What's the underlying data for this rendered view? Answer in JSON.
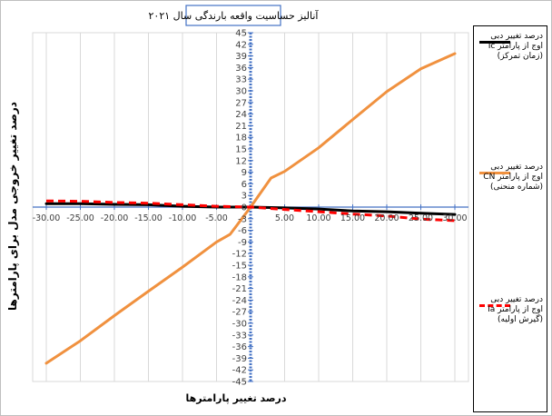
{
  "chart_data": {
    "type": "line",
    "title": "آنالیز حساسیت واقعه بارندگی سال ۲۰۲۱",
    "xlabel": "درصد تغییر پارامترها",
    "ylabel": "درصد تغییر خروجی مدل برای پارامترها",
    "x": [
      -30,
      -25,
      -20,
      -15,
      -10,
      -5,
      0,
      5,
      10,
      15,
      20,
      25,
      30
    ],
    "x_tick_labels": [
      "-30.00",
      "-25.00",
      "-20.00",
      "-15.00",
      "-10.00",
      "-5.00",
      "5.00",
      "10.00",
      "15.00",
      "20.00",
      "25.00",
      "30.00"
    ],
    "y_tick_labels": [
      "45",
      "42",
      "39",
      "36",
      "33",
      "30",
      "27",
      "24",
      "21",
      "18",
      "15",
      "12",
      "9",
      "6",
      "3",
      "0",
      "-3",
      "-6",
      "-9",
      "-12",
      "-15",
      "-18",
      "-21",
      "-24",
      "-27",
      "-30",
      "-33",
      "-36",
      "-39",
      "-42",
      "-45"
    ],
    "xlim": [
      -32,
      32
    ],
    "ylim": [
      -45,
      45
    ],
    "series": [
      {
        "name": "درصد تغییر دبی اوج از پارامتر Tc (زمان تمرکز)",
        "color": "#000000",
        "style": "solid",
        "x": [
          -30,
          -25,
          -20,
          -15,
          -10,
          -5,
          0,
          5,
          10,
          15,
          20,
          25,
          30
        ],
        "values": [
          0.9,
          0.9,
          0.7,
          0.6,
          0.2,
          0.0,
          0.0,
          -0.2,
          -0.5,
          -1.0,
          -1.2,
          -1.6,
          -1.9
        ]
      },
      {
        "name": "درصد تغییر دبی اوج از پارامتر CN (شماره منحنی)",
        "color": "#f0913f",
        "style": "solid",
        "x": [
          -30,
          -25,
          -20,
          -15,
          -10,
          -5,
          -3,
          0,
          3,
          5,
          10,
          15,
          20,
          25,
          30
        ],
        "values": [
          -40.3,
          -34.5,
          -28.0,
          -21.7,
          -15.5,
          -9.0,
          -7.0,
          0.0,
          7.5,
          9.2,
          15.3,
          22.6,
          29.8,
          35.7,
          39.6
        ]
      },
      {
        "name": "درصد تغییر دبی اوج از پارامتر Ia (گیرش اولیه)",
        "color": "#ff0000",
        "style": "dashed",
        "x": [
          -30,
          -25,
          -20,
          -15,
          -10,
          -5,
          0,
          5,
          10,
          15,
          20,
          25,
          30
        ],
        "values": [
          1.6,
          1.5,
          1.2,
          1.0,
          0.6,
          0.2,
          0.0,
          -0.6,
          -1.2,
          -1.8,
          -2.3,
          -3.1,
          -3.5
        ]
      }
    ],
    "grid": true,
    "legend": "right"
  }
}
